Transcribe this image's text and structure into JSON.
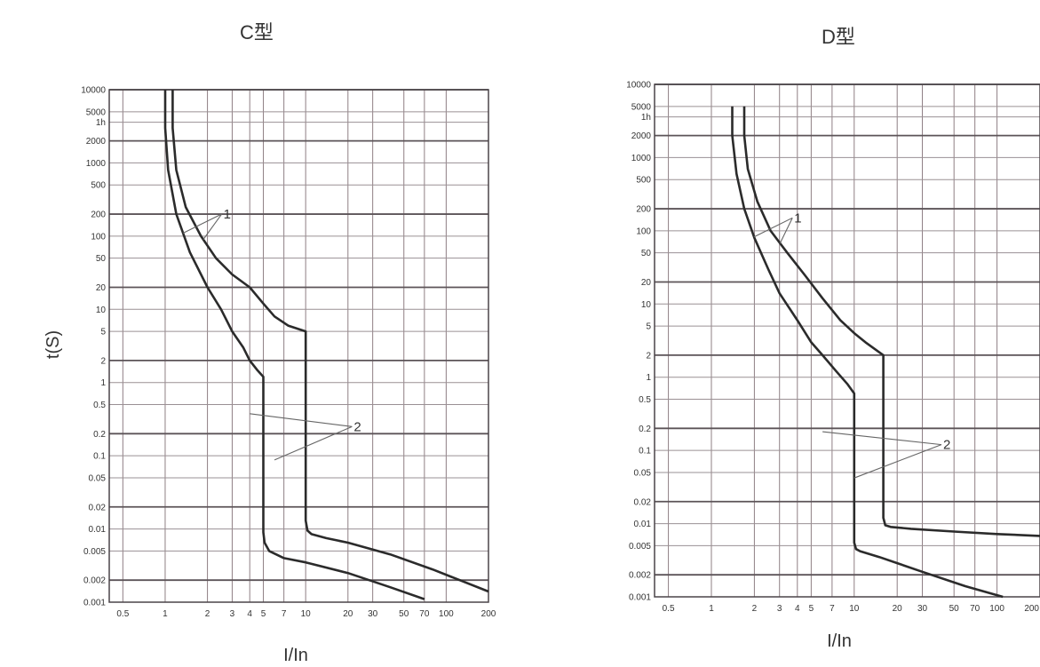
{
  "chart_data": [
    {
      "type": "line",
      "title": "C型",
      "xlabel": "I/In",
      "ylabel": "t(S)",
      "xscale": "log",
      "yscale": "log",
      "xlim": [
        0.4,
        200
      ],
      "ylim": [
        0.001,
        10000
      ],
      "grid": true,
      "x_tick_labels": [
        "0.5",
        "1",
        "2",
        "3",
        "4",
        "5",
        "7",
        "10",
        "20",
        "30",
        "50",
        "70",
        "100",
        "200"
      ],
      "x_tick_values": [
        0.5,
        1,
        2,
        3,
        4,
        5,
        7,
        10,
        20,
        30,
        50,
        70,
        100,
        200
      ],
      "y_tick_labels": [
        "10000",
        "5000",
        "1h",
        "2000",
        "1000",
        "500",
        "200",
        "100",
        "50",
        "20",
        "10",
        "5",
        "2",
        "1",
        "0.5",
        "0.2",
        "0.1",
        "0.05",
        "0.02",
        "0.01",
        "0.005",
        "0.002",
        "0.001"
      ],
      "y_tick_values": [
        10000,
        5000,
        3600,
        2000,
        1000,
        500,
        200,
        100,
        50,
        20,
        10,
        5,
        2,
        1,
        0.5,
        0.2,
        0.1,
        0.05,
        0.02,
        0.01,
        0.005,
        0.002,
        0.001
      ],
      "series": [
        {
          "x": [
            1,
            1,
            1.05,
            1.2,
            1.5,
            2,
            2.5,
            3,
            3.6,
            4,
            4.5,
            5,
            5,
            5,
            5.1,
            5.5,
            7,
            10,
            20,
            40,
            70
          ],
          "y": [
            10000,
            3000,
            800,
            200,
            60,
            20,
            10,
            5,
            3,
            2,
            1.5,
            1.2,
            0.1,
            0.009,
            0.0065,
            0.005,
            0.004,
            0.0035,
            0.0025,
            0.0016,
            0.0011
          ]
        },
        {
          "x": [
            1.13,
            1.13,
            1.2,
            1.4,
            1.8,
            2.3,
            3,
            4,
            5,
            6,
            7.5,
            10,
            10,
            10,
            10.3,
            11,
            14,
            20,
            40,
            80,
            200
          ],
          "y": [
            10000,
            3000,
            800,
            250,
            100,
            50,
            30,
            20,
            12,
            8,
            6,
            5,
            0.5,
            0.013,
            0.0095,
            0.0085,
            0.0075,
            0.0065,
            0.0045,
            0.0028,
            0.0014
          ]
        }
      ],
      "annotations": [
        {
          "text": "1",
          "x": 2.6,
          "y": 200
        },
        {
          "text": "2",
          "x": 22,
          "y": 0.25
        }
      ]
    },
    {
      "type": "line",
      "title": "D型",
      "xlabel": "I/In",
      "ylabel": "",
      "xscale": "log",
      "yscale": "log",
      "xlim": [
        0.4,
        200
      ],
      "ylim": [
        0.001,
        10000
      ],
      "grid": true,
      "x_tick_labels": [
        "0.5",
        "1",
        "2",
        "3",
        "4",
        "5",
        "7",
        "10",
        "20",
        "30",
        "50",
        "70",
        "100",
        "200"
      ],
      "x_tick_values": [
        0.5,
        1,
        2,
        3,
        4,
        5,
        7,
        10,
        20,
        30,
        50,
        70,
        100,
        200
      ],
      "y_tick_labels": [
        "10000",
        "5000",
        "1h",
        "2000",
        "1000",
        "500",
        "200",
        "100",
        "50",
        "20",
        "10",
        "5",
        "2",
        "1",
        "0.5",
        "0.2",
        "0.1",
        "0.05",
        "0.02",
        "0.01",
        "0.005",
        "0.002",
        "0.001"
      ],
      "y_tick_values": [
        10000,
        5000,
        3600,
        2000,
        1000,
        500,
        200,
        100,
        50,
        20,
        10,
        5,
        2,
        1,
        0.5,
        0.2,
        0.1,
        0.05,
        0.02,
        0.01,
        0.005,
        0.002,
        0.001
      ],
      "series": [
        {
          "x": [
            1.4,
            1.4,
            1.5,
            1.7,
            2,
            2.5,
            3,
            4,
            5,
            6,
            7.5,
            9,
            10,
            10,
            10,
            10.3,
            11,
            15,
            30,
            60,
            110
          ],
          "y": [
            5000,
            2000,
            600,
            200,
            80,
            30,
            14,
            6,
            3,
            2,
            1.2,
            0.8,
            0.6,
            0.05,
            0.0055,
            0.0045,
            0.0042,
            0.0035,
            0.0022,
            0.0014,
            0.001
          ]
        },
        {
          "x": [
            1.7,
            1.7,
            1.8,
            2.1,
            2.6,
            3.4,
            4.5,
            6,
            8,
            10,
            12,
            16,
            16,
            16,
            16.5,
            18,
            25,
            50,
            100,
            200
          ],
          "y": [
            5000,
            2000,
            700,
            250,
            100,
            50,
            25,
            12,
            6,
            4,
            3,
            2,
            0.3,
            0.012,
            0.0095,
            0.009,
            0.0085,
            0.0078,
            0.0072,
            0.0068
          ]
        }
      ],
      "annotations": [
        {
          "text": "1",
          "x": 3.8,
          "y": 150
        },
        {
          "text": "2",
          "x": 42,
          "y": 0.12
        }
      ]
    }
  ]
}
